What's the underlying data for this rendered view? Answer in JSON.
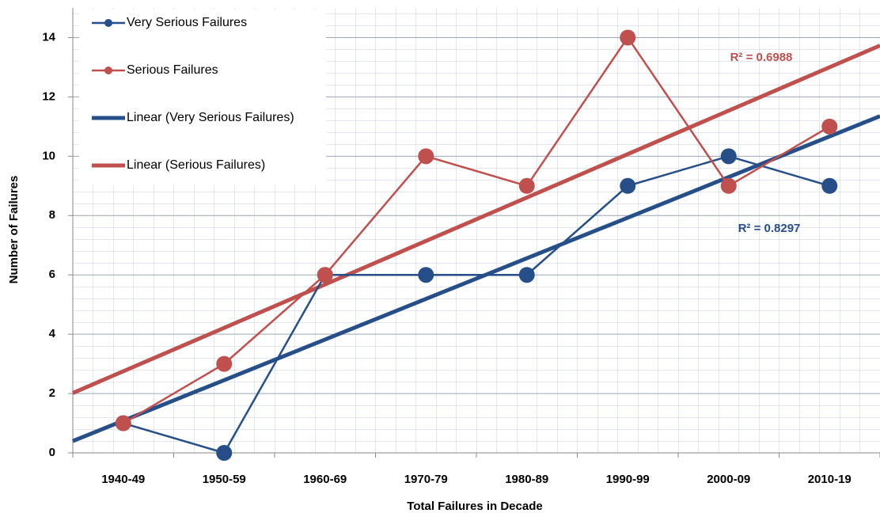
{
  "chart_data": {
    "type": "line",
    "xlabel": "Total Failures in Decade",
    "ylabel": "Number of Failures",
    "categories": [
      "1940-49",
      "1950-59",
      "1960-69",
      "1970-79",
      "1980-89",
      "1990-99",
      "2000-09",
      "2010-19"
    ],
    "series": [
      {
        "name": "Very Serious Failures",
        "color": "#264f8a",
        "values": [
          1,
          0,
          6,
          6,
          6,
          9,
          10,
          9
        ]
      },
      {
        "name": "Serious Failures",
        "color": "#c0504d",
        "values": [
          1,
          3,
          6,
          10,
          9,
          14,
          9,
          11
        ]
      }
    ],
    "trendlines": [
      {
        "name": "Linear (Very Serious Failures)",
        "series": 0,
        "annotation": "R² = 0.8297"
      },
      {
        "name": "Linear (Serious Failures)",
        "series": 1,
        "annotation": "R² = 0.6988"
      }
    ],
    "ylim": [
      0,
      15
    ],
    "yticks": [
      0,
      2,
      4,
      6,
      8,
      10,
      12,
      14
    ],
    "grid": true,
    "legend": "upper left"
  }
}
